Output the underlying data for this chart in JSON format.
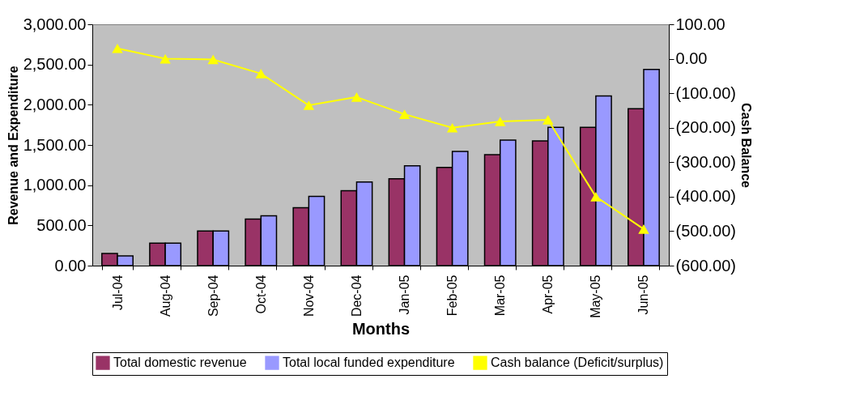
{
  "chart_data": {
    "type": "bar",
    "xlabel": "Months",
    "ylabel": "Revenue and Expenditure",
    "y2label": "Cash Balance",
    "categories": [
      "Jul-04",
      "Aug-04",
      "Sep-04",
      "Oct-04",
      "Nov-04",
      "Dec-04",
      "Jan-05",
      "Feb-05",
      "Mar-05",
      "Apr-05",
      "May-05",
      "Jun-05"
    ],
    "series": [
      {
        "name": "Total domestic revenue",
        "color": "#993366",
        "values": [
          150,
          280,
          430,
          580,
          720,
          930,
          1080,
          1220,
          1380,
          1550,
          1720,
          1950
        ]
      },
      {
        "name": "Total local funded expenditure",
        "color": "#9999ff",
        "values": [
          120,
          280,
          430,
          620,
          860,
          1040,
          1240,
          1420,
          1560,
          1720,
          2110,
          2440
        ]
      },
      {
        "name": "Cash balance (Deficit/surplus)",
        "type": "line",
        "axis": "y2",
        "color": "#ffff00",
        "marker": "triangle",
        "values": [
          30,
          0,
          -2,
          -43,
          -135,
          -111,
          -161,
          -200,
          -182,
          -177,
          -400,
          -494
        ]
      }
    ],
    "ylim": [
      0,
      3000
    ],
    "yticks": [
      {
        "value": 0,
        "label": "0.00"
      },
      {
        "value": 500,
        "label": "500.00"
      },
      {
        "value": 1000,
        "label": "1,000.00"
      },
      {
        "value": 1500,
        "label": "1,500.00"
      },
      {
        "value": 2000,
        "label": "2,000.00"
      },
      {
        "value": 2500,
        "label": "2,500.00"
      },
      {
        "value": 3000,
        "label": "3,000.00"
      }
    ],
    "y2lim": [
      -600,
      100
    ],
    "y2ticks": [
      {
        "value": -600,
        "label": "(600.00)"
      },
      {
        "value": -500,
        "label": "(500.00)"
      },
      {
        "value": -400,
        "label": "(400.00)"
      },
      {
        "value": -300,
        "label": "(300.00)"
      },
      {
        "value": -200,
        "label": "(200.00)"
      },
      {
        "value": -100,
        "label": "(100.00)"
      },
      {
        "value": 0,
        "label": "0.00"
      },
      {
        "value": 100,
        "label": "100.00"
      }
    ],
    "legend": "bottom",
    "grid": false
  }
}
